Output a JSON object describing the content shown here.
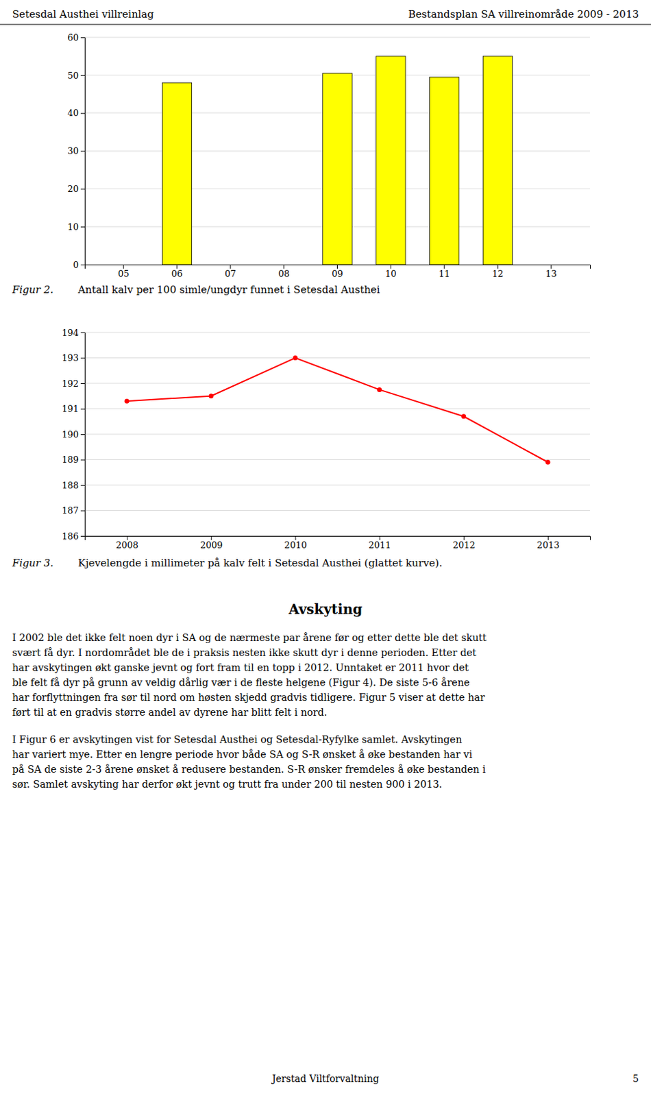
{
  "header_left": "Setesdal Austhei villreinlag",
  "header_right": "Bestandsplan SA villreinområde 2009 - 2013",
  "chart_data": [
    {
      "type": "bar",
      "label": "Figur 2.",
      "title": "Antall kalv per 100 simle/ungdyr funnet i Setesdal Austhei",
      "categories": [
        "05",
        "06",
        "07",
        "08",
        "09",
        "10",
        "11",
        "12",
        "13"
      ],
      "values": [
        0,
        48,
        0,
        0,
        50.5,
        55,
        49.5,
        55,
        0
      ],
      "color": "#FFFF00",
      "ylim": [
        0,
        60
      ],
      "yticks": [
        0,
        10,
        20,
        30,
        40,
        50,
        60
      ],
      "grid": true
    },
    {
      "type": "line",
      "label": "Figur 3.",
      "title": "Kjevelengde i millimeter på kalv felt i Setesdal Austhei (glattet kurve).",
      "x": [
        2008,
        2009,
        2010,
        2011,
        2012,
        2013
      ],
      "values": [
        191.3,
        191.5,
        193.0,
        191.75,
        190.7,
        188.9
      ],
      "color": "#FF0000",
      "marker": "circle",
      "xlim": [
        2007.5,
        2013.5
      ],
      "xticks": [
        2008,
        2009,
        2010,
        2011,
        2012,
        2013
      ],
      "ylim": [
        186,
        194
      ],
      "yticks": [
        186,
        187,
        188,
        189,
        190,
        191,
        192,
        193,
        194
      ],
      "grid": true
    }
  ],
  "section_title": "Avskyting",
  "paragraphs": [
    [
      "I 2002 ble det ikke felt noen dyr i SA og de nærmeste par årene før og etter dette ble det skutt",
      "svært få dyr. I nordområdet ble de i praksis nesten ikke skutt dyr i denne perioden. Etter det",
      "har avskytingen økt ganske jevnt og fort fram til en topp i 2012. Unntaket er 2011 hvor det",
      "ble felt få dyr på grunn av veldig dårlig vær i de fleste helgene (Figur 4). De siste 5-6 årene",
      "har forflyttningen fra sør til nord om høsten skjedd gradvis tidligere. Figur 5 viser at dette har",
      "ført til at en gradvis større andel av dyrene har blitt felt i nord."
    ],
    [
      "I Figur 6 er avskytingen vist for Setesdal Austhei og Setesdal-Ryfylke samlet. Avskytingen",
      "har variert mye. Etter en lengre periode hvor både SA og S-R ønsket å øke bestanden har vi",
      "på SA de siste 2-3 årene ønsket å redusere bestanden. S-R ønsker fremdeles å øke bestanden i",
      "sør. Samlet avskyting har derfor økt jevnt og trutt fra under 200 til nesten 900 i 2013."
    ]
  ],
  "footer": "Jerstad Viltforvaltning",
  "page_number": "5"
}
